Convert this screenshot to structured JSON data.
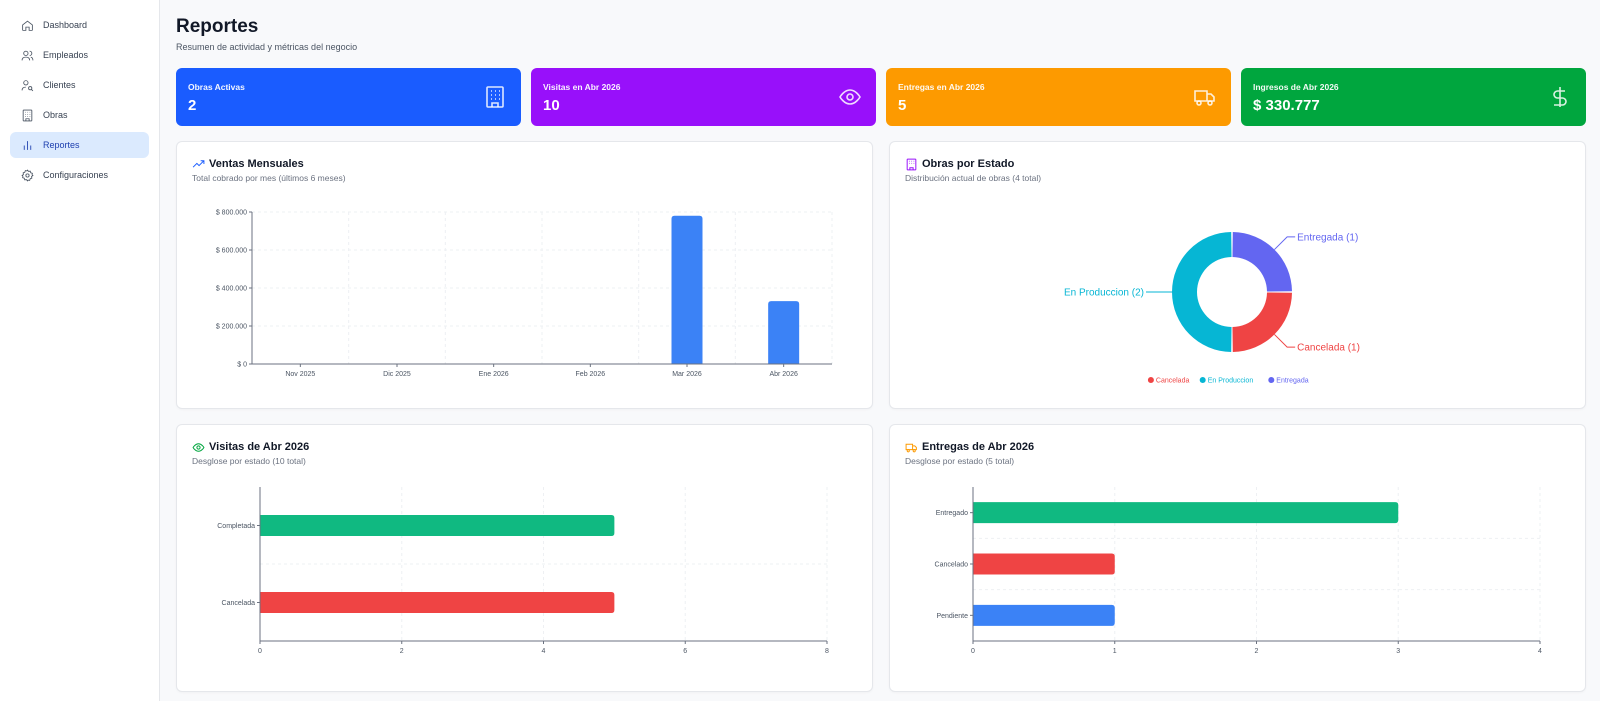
{
  "sidebar": {
    "items": [
      {
        "label": "Dashboard",
        "icon": "home-icon"
      },
      {
        "label": "Empleados",
        "icon": "users-icon"
      },
      {
        "label": "Clientes",
        "icon": "user-search-icon"
      },
      {
        "label": "Obras",
        "icon": "building-icon"
      },
      {
        "label": "Reportes",
        "icon": "bar-chart-icon",
        "active": true
      },
      {
        "label": "Configuraciones",
        "icon": "gear-icon"
      }
    ]
  },
  "header": {
    "title": "Reportes",
    "subtitle": "Resumen de actividad y métricas del negocio"
  },
  "stats": [
    {
      "label": "Obras Activas",
      "value": "2",
      "color": "#1a5cff",
      "icon": "building-icon"
    },
    {
      "label": "Visitas en Abr 2026",
      "value": "10",
      "color": "#9810fa",
      "icon": "eye-icon"
    },
    {
      "label": "Entregas en Abr 2026",
      "value": "5",
      "color": "#fd9a00",
      "icon": "truck-icon"
    },
    {
      "label": "Ingresos de Abr 2026",
      "value": "$ 330.777",
      "color": "#00a63e",
      "icon": "dollar-icon"
    }
  ],
  "cards": {
    "ventas": {
      "title": "Ventas Mensuales",
      "subtitle": "Total cobrado por mes (últimos 6 meses)"
    },
    "obras": {
      "title": "Obras por Estado",
      "subtitle": "Distribución actual de obras (4 total)"
    },
    "visitas": {
      "title": "Visitas de Abr 2026",
      "subtitle": "Desglose por estado (10 total)"
    },
    "entregas": {
      "title": "Entregas de Abr 2026",
      "subtitle": "Desglose por estado (5 total)"
    }
  },
  "chart_data": [
    {
      "id": "ventas",
      "type": "bar",
      "categories": [
        "Nov 2025",
        "Dic 2025",
        "Ene 2026",
        "Feb 2026",
        "Mar 2026",
        "Abr 2026"
      ],
      "values": [
        0,
        0,
        0,
        0,
        780000,
        330777
      ],
      "ylim": [
        0,
        800000
      ],
      "yticks": [
        "$ 0",
        "$ 200.000",
        "$ 400.000",
        "$ 600.000",
        "$ 800.000"
      ],
      "color": "#3b82f6",
      "grid": true
    },
    {
      "id": "obras",
      "type": "pie",
      "donut": true,
      "slices": [
        {
          "name": "Cancelada",
          "value": 1,
          "color": "#ef4444",
          "label": "Cancelada (1)"
        },
        {
          "name": "En Produccion",
          "value": 2,
          "color": "#06b6d4",
          "label": "En Produccion (2)"
        },
        {
          "name": "Entregada",
          "value": 1,
          "color": "#6366f1",
          "label": "Entregada (1)"
        }
      ],
      "legend": "bottom"
    },
    {
      "id": "visitas",
      "type": "bar",
      "orientation": "horizontal",
      "categories": [
        "Completada",
        "Cancelada"
      ],
      "values": [
        5,
        5
      ],
      "colors": [
        "#10b981",
        "#ef4444"
      ],
      "xlim": [
        0,
        8
      ],
      "xticks": [
        "0",
        "2",
        "4",
        "6",
        "8"
      ],
      "grid": true
    },
    {
      "id": "entregas",
      "type": "bar",
      "orientation": "horizontal",
      "categories": [
        "Entregado",
        "Cancelado",
        "Pendiente"
      ],
      "values": [
        3,
        1,
        1
      ],
      "colors": [
        "#10b981",
        "#ef4444",
        "#3b82f6"
      ],
      "xlim": [
        0,
        4
      ],
      "xticks": [
        "0",
        "1",
        "2",
        "3",
        "4"
      ],
      "grid": true
    }
  ]
}
